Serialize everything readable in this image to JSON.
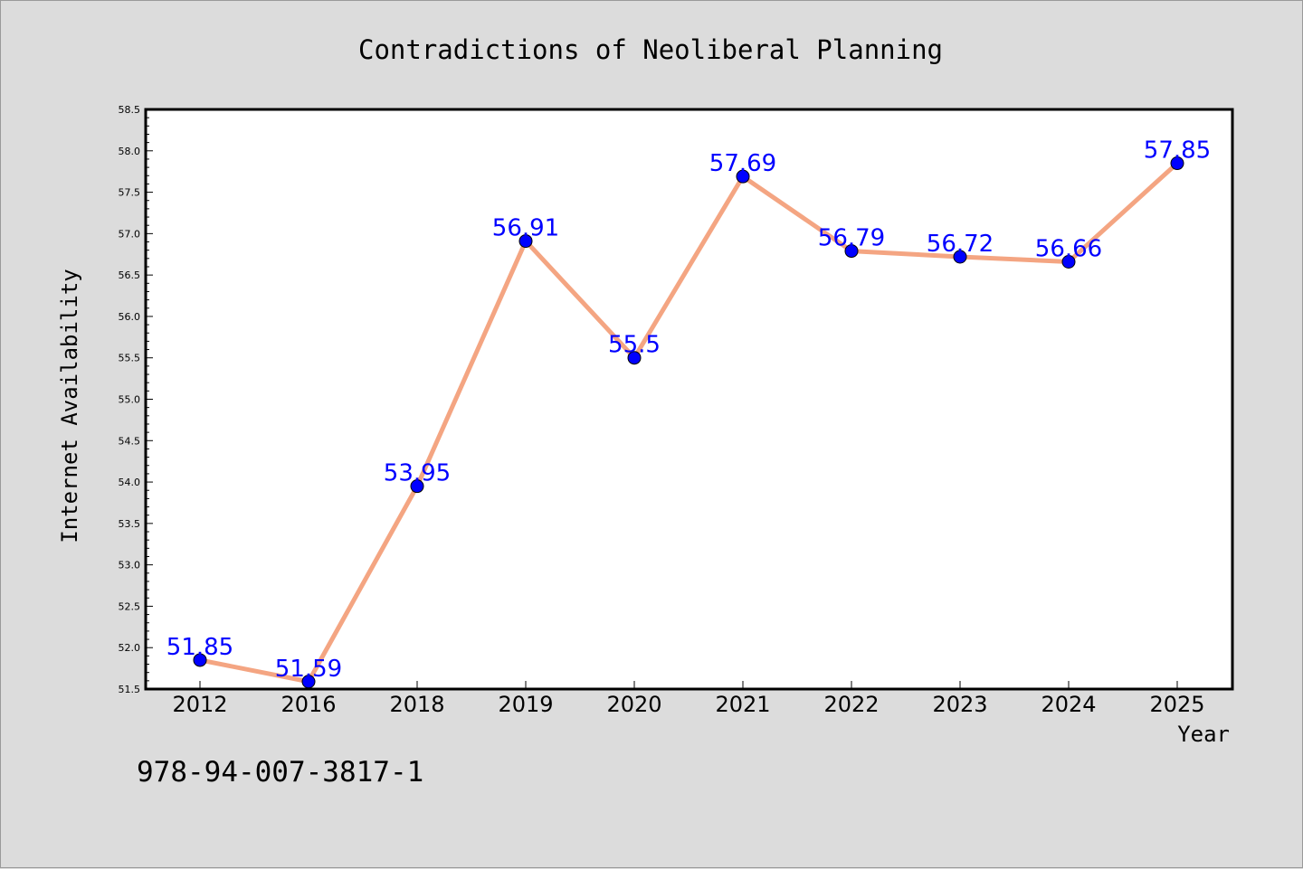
{
  "chart_data": {
    "type": "line",
    "title": "Contradictions of Neoliberal Planning",
    "xlabel": "Year",
    "ylabel": "Internet Availability",
    "categories": [
      "2012",
      "2016",
      "2018",
      "2019",
      "2020",
      "2021",
      "2022",
      "2023",
      "2024",
      "2025"
    ],
    "series": [
      {
        "values": [
          51.85,
          51.59,
          53.95,
          56.91,
          55.5,
          57.69,
          56.79,
          56.72,
          56.66,
          57.85
        ],
        "data_labels": [
          "51.85",
          "51.59",
          "53.95",
          "56.91",
          "55.5",
          "57.69",
          "56.79",
          "56.72",
          "56.66",
          "57.85"
        ],
        "line_color": "#f4a582",
        "marker_color": "#0000ff"
      }
    ],
    "ylim": [
      51.5,
      58.5
    ],
    "yticks": [
      51.5,
      52.0,
      52.5,
      53.0,
      53.5,
      54.0,
      54.5,
      55.0,
      55.5,
      56.0,
      56.5,
      57.0,
      57.5,
      58.0,
      58.5
    ],
    "ytick_labels": [
      "51.5",
      "52.0",
      "52.5",
      "53.0",
      "53.5",
      "54.0",
      "54.5",
      "55.0",
      "55.5",
      "56.0",
      "56.5",
      "57.0",
      "57.5",
      "58.0",
      "58.5"
    ],
    "grid": false,
    "legend": "none"
  },
  "footer": {
    "isbn": "978-94-007-3817-1"
  },
  "colors": {
    "background": "#dcdcdc",
    "plot_background": "#ffffff",
    "line": "#f4a582",
    "marker": "#0000ff",
    "data_label": "#0000ff"
  }
}
